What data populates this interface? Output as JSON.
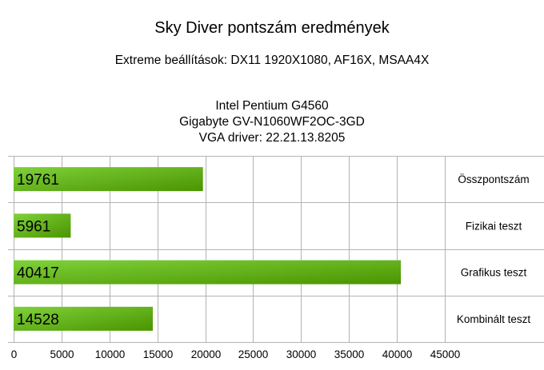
{
  "chart_data": {
    "type": "bar",
    "orientation": "horizontal",
    "title": "Sky Diver pontszám eredmények",
    "subtitle": "Extreme beállítások: DX11 1920X1080, AF16X, MSAA4X",
    "info_lines": [
      "Intel Pentium G4560",
      "Gigabyte GV-N1060WF2OC-3GD",
      "VGA driver: 22.21.13.8205"
    ],
    "categories": [
      "Összpontszám",
      "Fizikai teszt",
      "Grafikus teszt",
      "Kombinált teszt"
    ],
    "values": [
      19761,
      5961,
      40417,
      14528
    ],
    "data_labels": [
      "19761",
      "5961",
      "40417",
      "14528"
    ],
    "xlim": [
      0,
      45000
    ],
    "x_ticks": [
      "0",
      "5000",
      "10000",
      "15000",
      "20000",
      "25000",
      "30000",
      "35000",
      "40000",
      "45000"
    ],
    "xlabel": "",
    "ylabel": "",
    "grid": true,
    "legend": "none",
    "category_label_position": "right",
    "colors": {
      "bar_light": "#7fd13a",
      "bar_dark": "#4a9400",
      "grid": "#b3b3b3"
    }
  }
}
